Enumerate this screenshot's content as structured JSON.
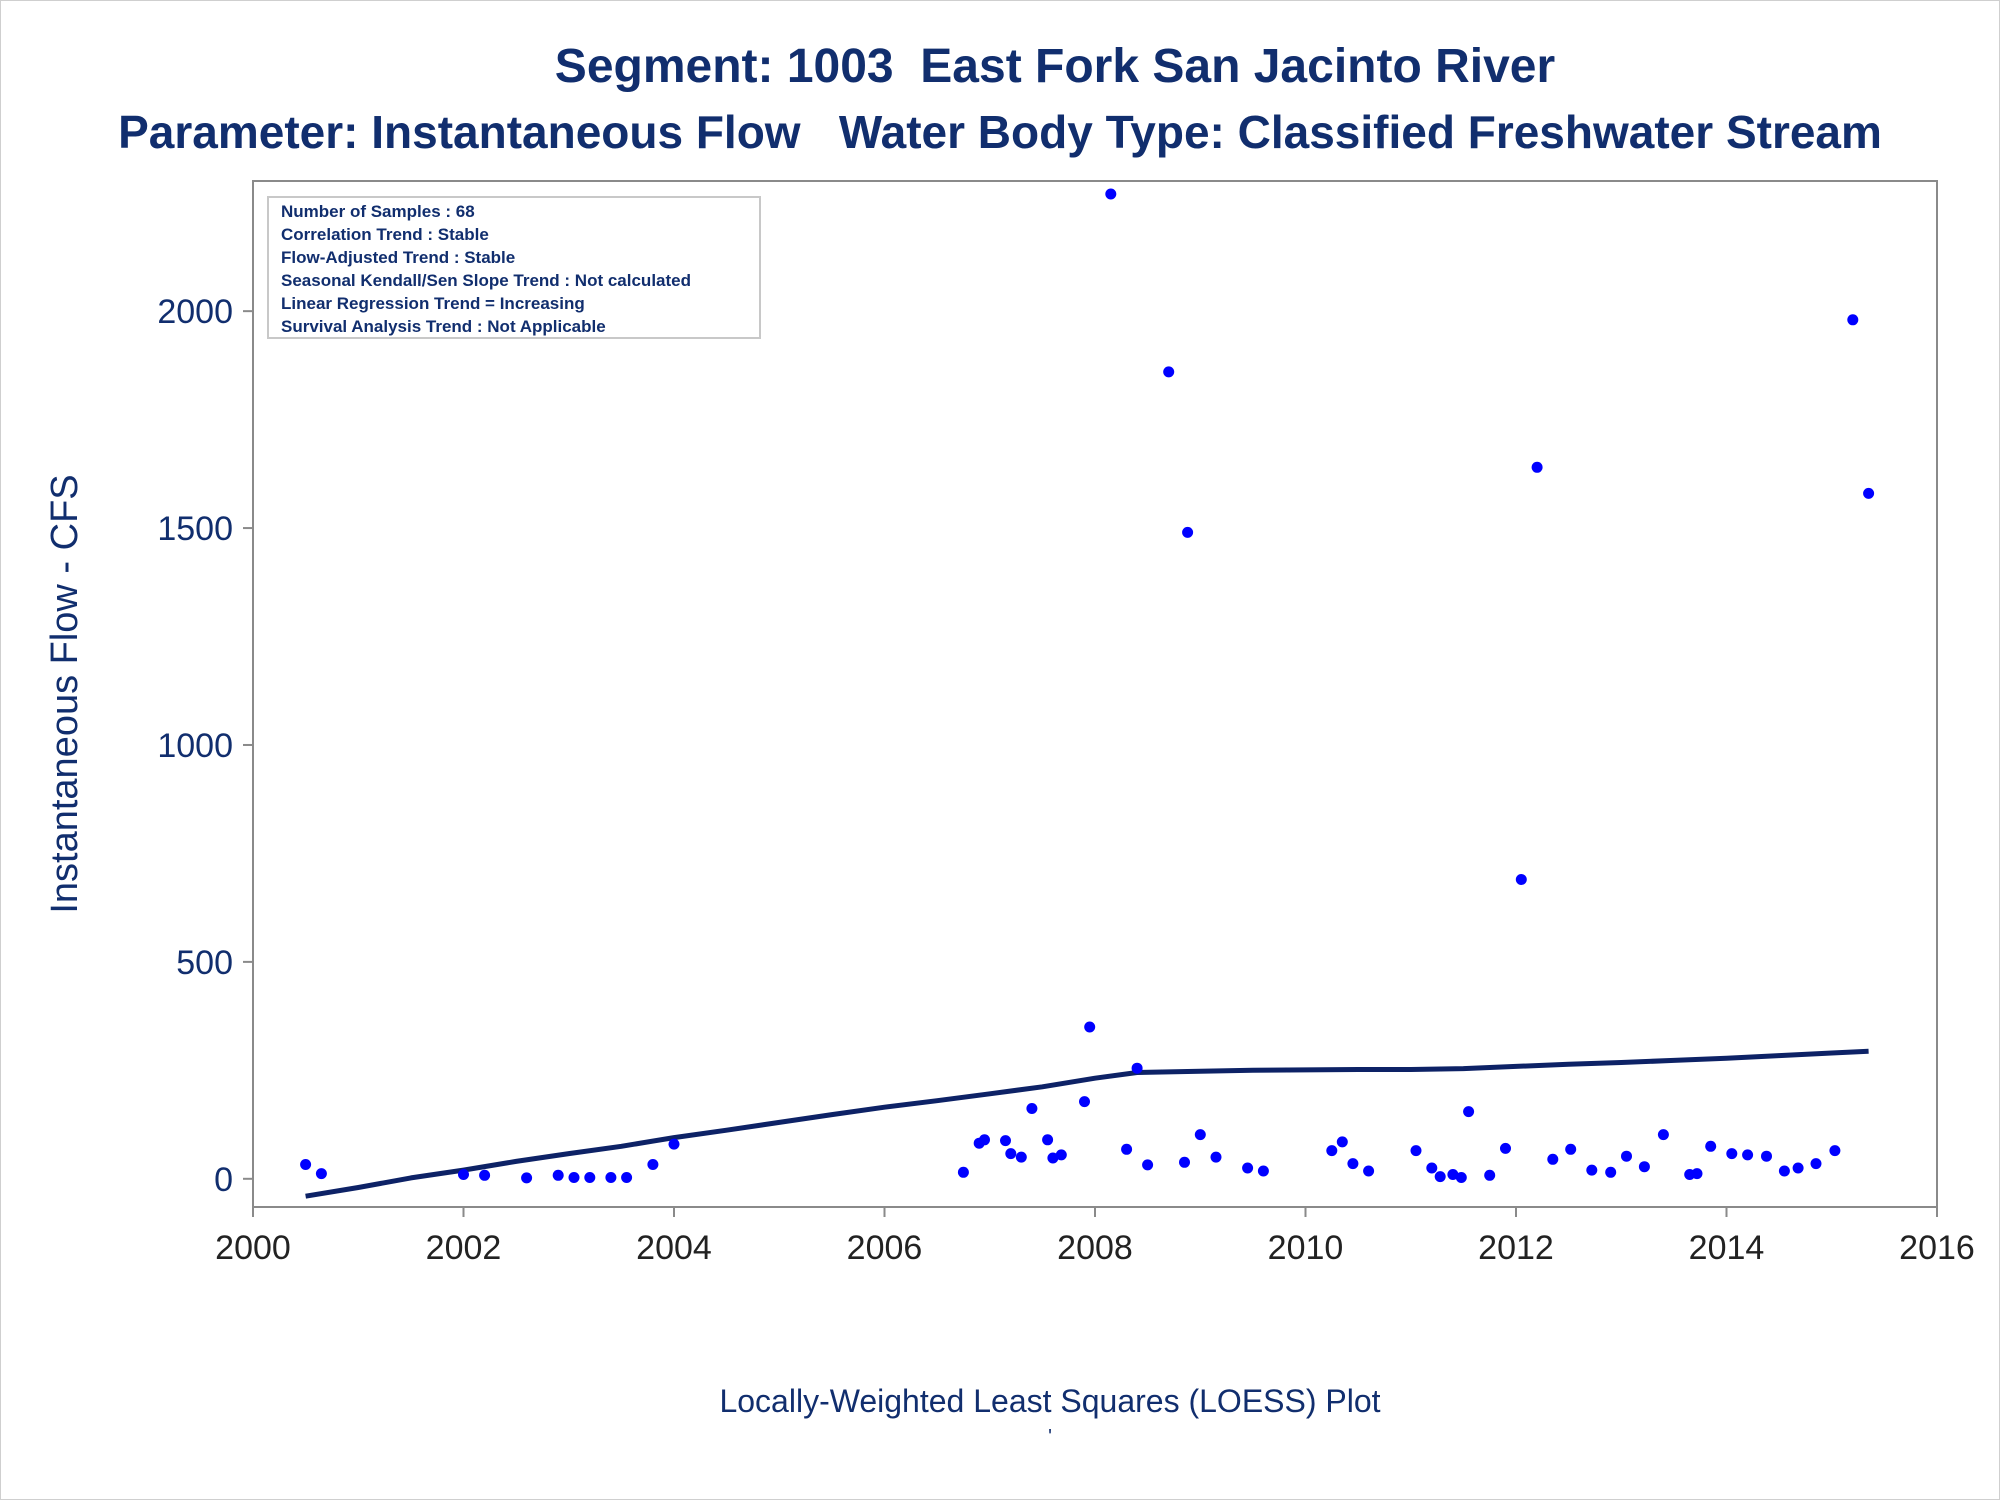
{
  "chart_data": {
    "type": "scatter",
    "title": "Segment: 1003  East Fork San Jacinto River",
    "subtitle": "Parameter: Instantaneous Flow   Water Body Type: Classified Freshwater Stream",
    "xlabel": "",
    "ylabel": "Instantaneous Flow - CFS",
    "footnote": "Locally-Weighted Least Squares (LOESS) Plot",
    "footnote_mark": "'",
    "xlim": [
      2000,
      2016
    ],
    "ylim": [
      -65,
      2300
    ],
    "x_ticks": [
      2000,
      2002,
      2004,
      2006,
      2008,
      2010,
      2012,
      2014,
      2016
    ],
    "y_ticks": [
      0,
      500,
      1000,
      1500,
      2000
    ],
    "grid": false,
    "annotation_box": {
      "placement": "top-left",
      "lines": [
        "Number of Samples : 68",
        "Correlation Trend : Stable",
        "Flow-Adjusted Trend : Stable",
        "Seasonal Kendall/Sen Slope Trend : Not calculated",
        "Linear Regression Trend = Increasing",
        "Survival Analysis Trend : Not Applicable"
      ]
    },
    "colors": {
      "points": "#0000ff",
      "loess_line": "#0d2266",
      "text": "#112e6e",
      "axis": "#8a8a8a"
    },
    "series": [
      {
        "type": "scatter",
        "points": [
          [
            2000.5,
            33
          ],
          [
            2000.65,
            12
          ],
          [
            2002.0,
            10
          ],
          [
            2002.2,
            8
          ],
          [
            2002.6,
            2
          ],
          [
            2002.9,
            8
          ],
          [
            2003.05,
            3
          ],
          [
            2003.2,
            3
          ],
          [
            2003.4,
            3
          ],
          [
            2003.55,
            3
          ],
          [
            2003.8,
            33
          ],
          [
            2004.0,
            80
          ],
          [
            2006.75,
            15
          ],
          [
            2006.9,
            82
          ],
          [
            2006.95,
            90
          ],
          [
            2007.15,
            88
          ],
          [
            2007.2,
            58
          ],
          [
            2007.3,
            50
          ],
          [
            2007.4,
            162
          ],
          [
            2007.55,
            90
          ],
          [
            2007.6,
            48
          ],
          [
            2007.68,
            55
          ],
          [
            2007.9,
            178
          ],
          [
            2007.95,
            350
          ],
          [
            2008.15,
            2270
          ],
          [
            2008.3,
            68
          ],
          [
            2008.4,
            255
          ],
          [
            2008.5,
            32
          ],
          [
            2008.7,
            1860
          ],
          [
            2008.85,
            38
          ],
          [
            2008.88,
            1490
          ],
          [
            2009.0,
            102
          ],
          [
            2009.15,
            50
          ],
          [
            2009.45,
            25
          ],
          [
            2009.6,
            18
          ],
          [
            2010.25,
            65
          ],
          [
            2010.35,
            85
          ],
          [
            2010.45,
            35
          ],
          [
            2010.6,
            18
          ],
          [
            2011.05,
            65
          ],
          [
            2011.2,
            25
          ],
          [
            2011.28,
            5
          ],
          [
            2011.4,
            10
          ],
          [
            2011.48,
            3
          ],
          [
            2011.55,
            155
          ],
          [
            2011.75,
            8
          ],
          [
            2011.9,
            70
          ],
          [
            2012.05,
            690
          ],
          [
            2012.2,
            1640
          ],
          [
            2012.35,
            45
          ],
          [
            2012.52,
            68
          ],
          [
            2012.72,
            20
          ],
          [
            2012.9,
            15
          ],
          [
            2013.05,
            52
          ],
          [
            2013.22,
            28
          ],
          [
            2013.4,
            102
          ],
          [
            2013.65,
            10
          ],
          [
            2013.72,
            12
          ],
          [
            2013.85,
            75
          ],
          [
            2014.05,
            58
          ],
          [
            2014.2,
            55
          ],
          [
            2014.38,
            52
          ],
          [
            2014.55,
            18
          ],
          [
            2014.68,
            25
          ],
          [
            2014.85,
            35
          ],
          [
            2015.03,
            65
          ],
          [
            2015.2,
            1980
          ],
          [
            2015.35,
            1580
          ]
        ]
      },
      {
        "type": "line",
        "points": [
          [
            2000.5,
            -40
          ],
          [
            2001.0,
            -20
          ],
          [
            2001.5,
            2
          ],
          [
            2002.0,
            20
          ],
          [
            2002.5,
            40
          ],
          [
            2003.0,
            58
          ],
          [
            2003.5,
            75
          ],
          [
            2004.0,
            95
          ],
          [
            2004.5,
            112
          ],
          [
            2005.0,
            130
          ],
          [
            2005.5,
            148
          ],
          [
            2006.0,
            165
          ],
          [
            2006.5,
            180
          ],
          [
            2007.0,
            196
          ],
          [
            2007.5,
            212
          ],
          [
            2008.0,
            232
          ],
          [
            2008.4,
            245
          ],
          [
            2009.0,
            248
          ],
          [
            2009.5,
            250
          ],
          [
            2010.0,
            251
          ],
          [
            2010.5,
            252
          ],
          [
            2011.0,
            252
          ],
          [
            2011.5,
            254
          ],
          [
            2012.0,
            259
          ],
          [
            2012.5,
            264
          ],
          [
            2013.0,
            268
          ],
          [
            2013.5,
            273
          ],
          [
            2014.0,
            278
          ],
          [
            2014.5,
            284
          ],
          [
            2015.0,
            290
          ],
          [
            2015.35,
            294
          ]
        ]
      }
    ]
  }
}
